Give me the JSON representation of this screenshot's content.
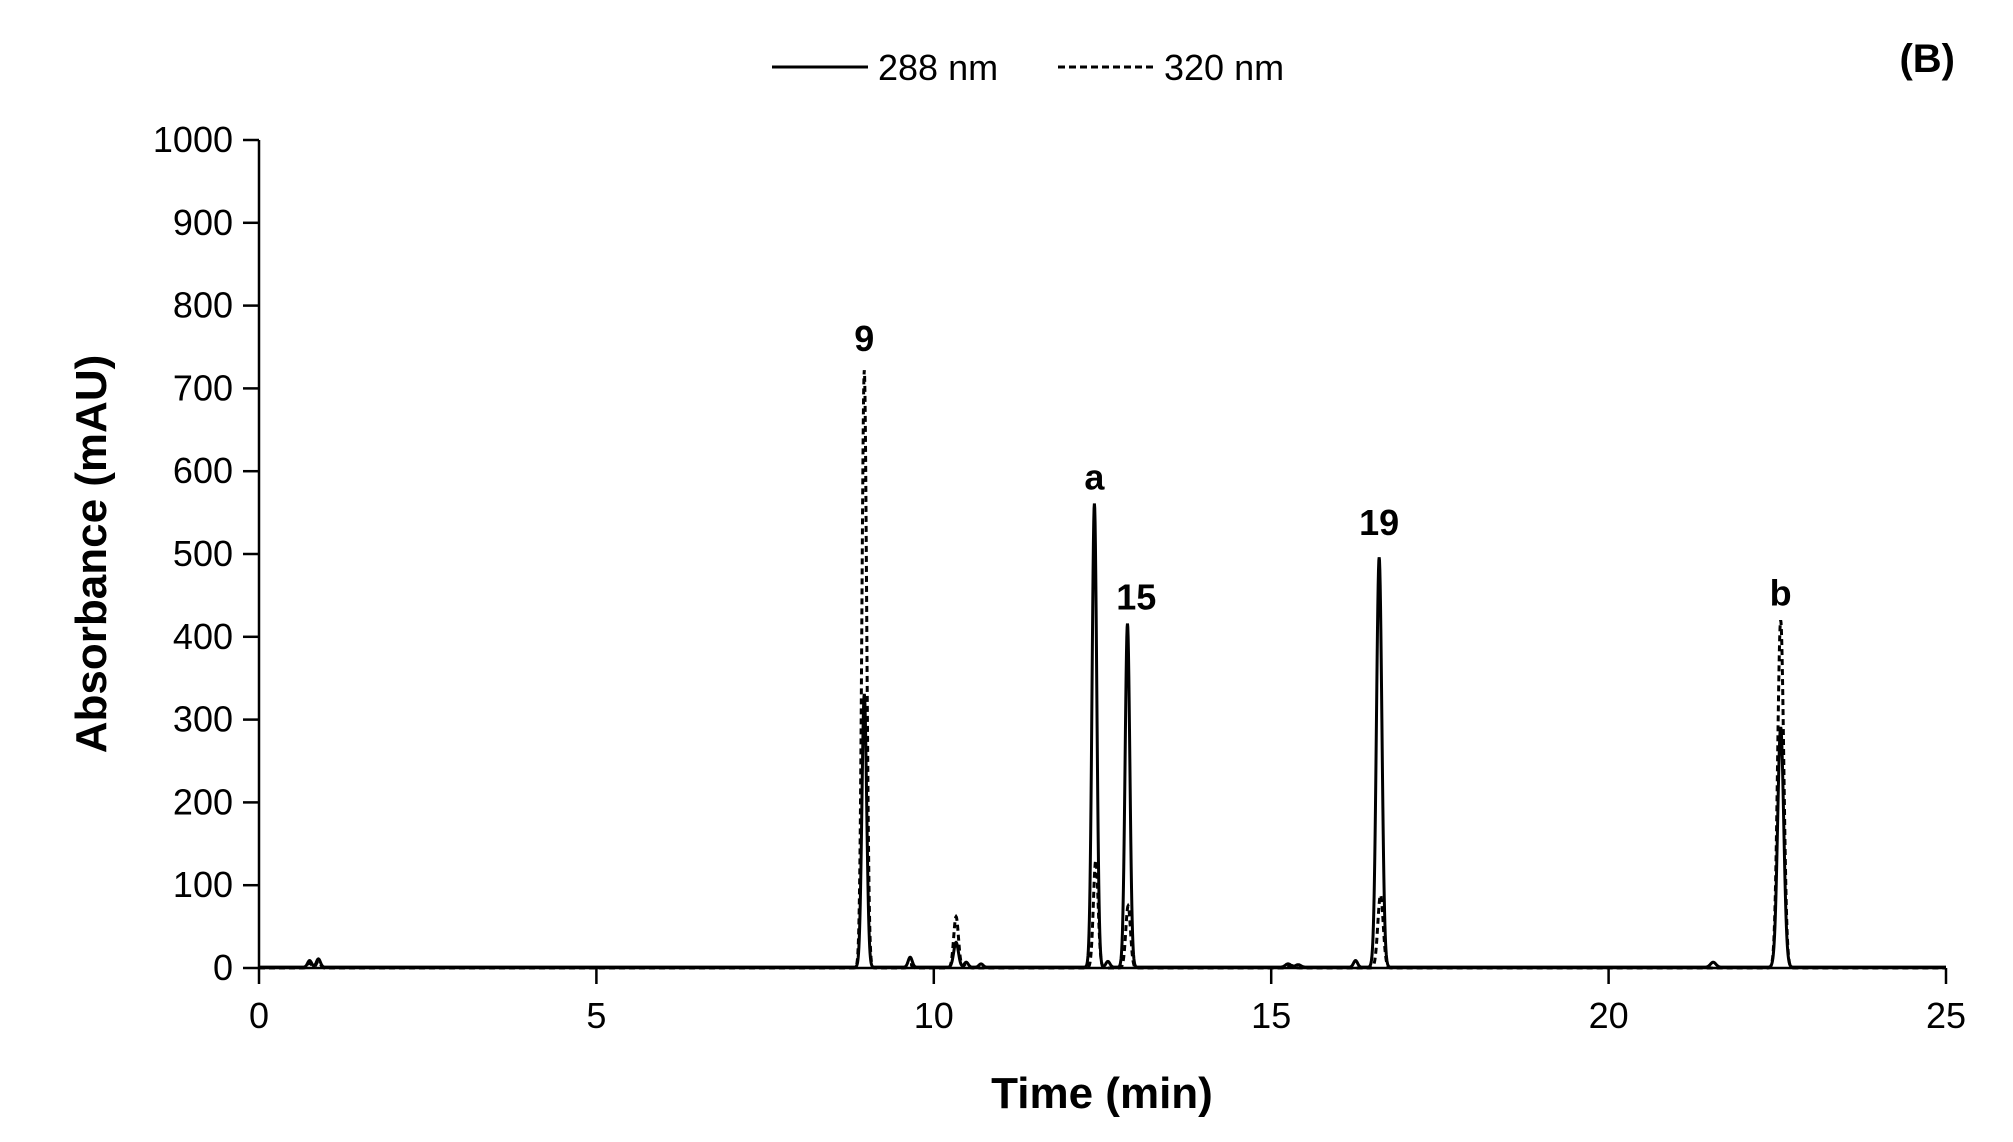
{
  "panel_label": "(B)",
  "chart_data": {
    "type": "line",
    "title": "",
    "xlabel": "Time (min)",
    "ylabel": "Absorbance (mAU)",
    "xlim": [
      0,
      25
    ],
    "ylim": [
      0,
      1000
    ],
    "xticks": [
      0,
      5,
      10,
      15,
      20,
      25
    ],
    "yticks": [
      0,
      100,
      200,
      300,
      400,
      500,
      600,
      700,
      800,
      900,
      1000
    ],
    "grid": false,
    "legend": {
      "placement": "top-center"
    },
    "colors": {
      "line": "#000000",
      "axis": "#000000"
    },
    "series": [
      {
        "name": "288 nm",
        "style": "solid",
        "baseline": 1,
        "peaks": [
          {
            "t": 0.75,
            "h": 8,
            "w": 0.03
          },
          {
            "t": 0.88,
            "h": 10,
            "w": 0.03
          },
          {
            "t": 8.97,
            "h": 330,
            "w": 0.035
          },
          {
            "t": 9.65,
            "h": 12,
            "w": 0.03
          },
          {
            "t": 10.33,
            "h": 30,
            "w": 0.035
          },
          {
            "t": 10.48,
            "h": 6,
            "w": 0.03
          },
          {
            "t": 10.7,
            "h": 4,
            "w": 0.03
          },
          {
            "t": 12.38,
            "h": 560,
            "w": 0.035
          },
          {
            "t": 12.58,
            "h": 7,
            "w": 0.03
          },
          {
            "t": 12.87,
            "h": 415,
            "w": 0.035
          },
          {
            "t": 15.25,
            "h": 4,
            "w": 0.04
          },
          {
            "t": 15.4,
            "h": 3,
            "w": 0.04
          },
          {
            "t": 16.25,
            "h": 8,
            "w": 0.03
          },
          {
            "t": 16.6,
            "h": 495,
            "w": 0.04
          },
          {
            "t": 21.55,
            "h": 6,
            "w": 0.04
          },
          {
            "t": 22.55,
            "h": 290,
            "w": 0.045
          }
        ]
      },
      {
        "name": "320 nm",
        "style": "dashed",
        "baseline": 0,
        "peaks": [
          {
            "t": 0.75,
            "h": 6,
            "w": 0.03
          },
          {
            "t": 0.88,
            "h": 8,
            "w": 0.03
          },
          {
            "t": 8.97,
            "h": 722,
            "w": 0.035
          },
          {
            "t": 9.65,
            "h": 4,
            "w": 0.03
          },
          {
            "t": 10.33,
            "h": 62,
            "w": 0.035
          },
          {
            "t": 10.48,
            "h": 5,
            "w": 0.03
          },
          {
            "t": 12.4,
            "h": 130,
            "w": 0.035
          },
          {
            "t": 12.88,
            "h": 75,
            "w": 0.035
          },
          {
            "t": 15.3,
            "h": 3,
            "w": 0.04
          },
          {
            "t": 16.62,
            "h": 88,
            "w": 0.04
          },
          {
            "t": 22.55,
            "h": 420,
            "w": 0.045
          }
        ]
      }
    ],
    "annotations": [
      {
        "text": "9",
        "x": 8.97,
        "y": 745
      },
      {
        "text": "a",
        "x": 12.38,
        "y": 578
      },
      {
        "text": "15",
        "x": 13.0,
        "y": 433
      },
      {
        "text": "19",
        "x": 16.6,
        "y": 523
      },
      {
        "text": "b",
        "x": 22.55,
        "y": 438
      }
    ]
  }
}
